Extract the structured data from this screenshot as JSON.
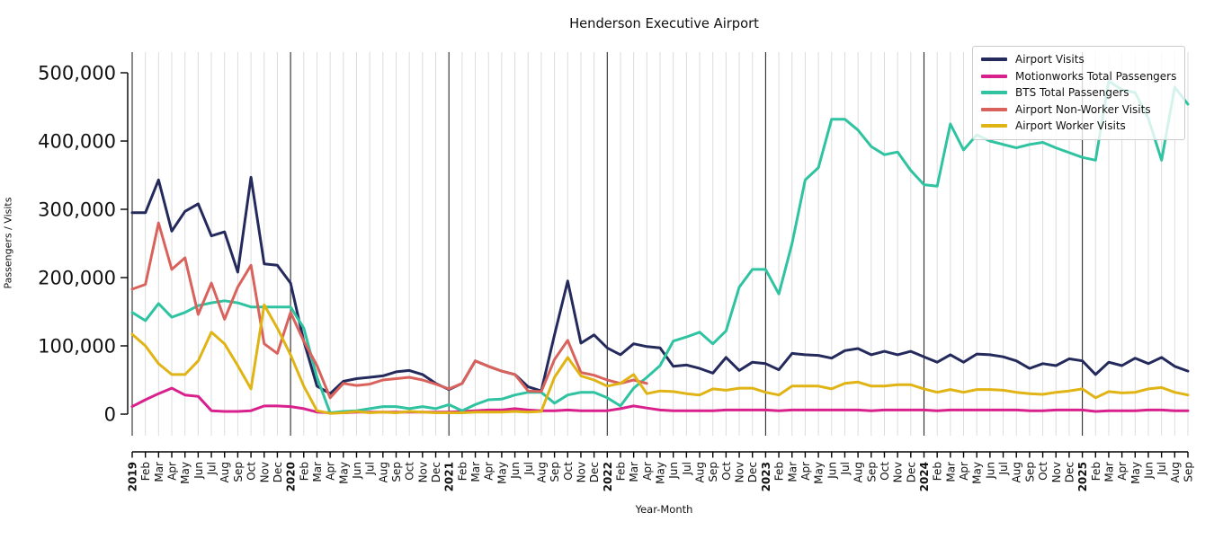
{
  "title": "Henderson Executive Airport",
  "x_axis_label": "Year-Month",
  "y_axis_label": "Passengers / Visits",
  "chart_data": {
    "type": "line",
    "title": "Henderson Executive Airport",
    "xlabel": "Year-Month",
    "ylabel": "Passengers / Visits",
    "ylim": [
      0,
      500000
    ],
    "legend_position": "upper right",
    "grid": "vertical gridline at every month; darker vertical line at every January",
    "y_tick_values": [
      0,
      100000,
      200000,
      300000,
      400000,
      500000
    ],
    "y_tick_labels": [
      "0",
      "100,000",
      "200,000",
      "300,000",
      "400,000",
      "500,000"
    ],
    "month_abbrevs": [
      "Jan",
      "Feb",
      "Mar",
      "Apr",
      "May",
      "Jun",
      "Jul",
      "Aug",
      "Sep",
      "Oct",
      "Nov",
      "Dec"
    ],
    "x": [
      "2019-01",
      "2019-02",
      "2019-03",
      "2019-04",
      "2019-05",
      "2019-06",
      "2019-07",
      "2019-08",
      "2019-09",
      "2019-10",
      "2019-11",
      "2019-12",
      "2020-01",
      "2020-02",
      "2020-03",
      "2020-04",
      "2020-05",
      "2020-06",
      "2020-07",
      "2020-08",
      "2020-09",
      "2020-10",
      "2020-11",
      "2020-12",
      "2021-01",
      "2021-02",
      "2021-03",
      "2021-04",
      "2021-05",
      "2021-06",
      "2021-07",
      "2021-08",
      "2021-09",
      "2021-10",
      "2021-11",
      "2021-12",
      "2022-01",
      "2022-02",
      "2022-03",
      "2022-04",
      "2022-05",
      "2022-06",
      "2022-07",
      "2022-08",
      "2022-09",
      "2022-10",
      "2022-11",
      "2022-12",
      "2023-01",
      "2023-02",
      "2023-03",
      "2023-04",
      "2023-05",
      "2023-06",
      "2023-07",
      "2023-08",
      "2023-09",
      "2023-10",
      "2023-11",
      "2023-12",
      "2024-01",
      "2024-02",
      "2024-03",
      "2024-04",
      "2024-05",
      "2024-06",
      "2024-07",
      "2024-08",
      "2024-09",
      "2024-10",
      "2024-11",
      "2024-12",
      "2025-01",
      "2025-02",
      "2025-03",
      "2025-04",
      "2025-05",
      "2025-06",
      "2025-07",
      "2025-08",
      "2025-09"
    ],
    "series": [
      {
        "name": "Airport Visits",
        "color": "#242a5c",
        "values": [
          295000,
          295000,
          343000,
          268000,
          297000,
          308000,
          261000,
          267000,
          208000,
          347000,
          220000,
          218000,
          192000,
          107000,
          41000,
          30000,
          48000,
          52000,
          54000,
          56000,
          62000,
          64000,
          58000,
          45000,
          36000,
          45000,
          78000,
          70000,
          63000,
          58000,
          40000,
          34000,
          116000,
          195000,
          104000,
          116000,
          97000,
          87000,
          103000,
          99000,
          97000,
          70000,
          72000,
          67000,
          60000,
          83000,
          64000,
          76000,
          74000,
          65000,
          89000,
          87000,
          86000,
          82000,
          93000,
          96000,
          87000,
          92000,
          87000,
          92000,
          84000,
          76000,
          87000,
          76000,
          88000,
          87000,
          84000,
          78000,
          67000,
          74000,
          71000,
          81000,
          78000,
          58000,
          76000,
          71000,
          82000,
          74000,
          83000,
          70000,
          63000
        ]
      },
      {
        "name": "Motionworks Total Passengers",
        "color": "#d9218e",
        "values": [
          11000,
          21000,
          30000,
          38000,
          28000,
          26000,
          5000,
          4000,
          4000,
          5000,
          12000,
          12000,
          11000,
          8000,
          3000,
          2000,
          2000,
          3000,
          3000,
          3000,
          3000,
          3000,
          3000,
          3000,
          3000,
          4000,
          5000,
          6000,
          6000,
          8000,
          6000,
          5000,
          5000,
          6000,
          5000,
          5000,
          5000,
          8000,
          12000,
          9000,
          6000,
          5000,
          5000,
          5000,
          5000,
          6000,
          6000,
          6000,
          6000,
          5000,
          6000,
          6000,
          6000,
          6000,
          6000,
          6000,
          5000,
          6000,
          6000,
          6000,
          6000,
          5000,
          6000,
          6000,
          6000,
          6000,
          6000,
          6000,
          5000,
          5000,
          6000,
          6000,
          6000,
          4000,
          5000,
          5000,
          5000,
          6000,
          6000,
          5000,
          5000
        ]
      },
      {
        "name": "BTS Total Passengers",
        "color": "#2fc3a1",
        "values": [
          149000,
          137000,
          162000,
          142000,
          149000,
          159000,
          163000,
          166000,
          163000,
          157000,
          157000,
          157000,
          157000,
          126000,
          54000,
          2000,
          4000,
          5000,
          8000,
          11000,
          11000,
          8000,
          11000,
          8000,
          14000,
          5000,
          14000,
          21000,
          22000,
          28000,
          32000,
          32000,
          16000,
          28000,
          32000,
          32000,
          24000,
          12000,
          38000,
          54000,
          71000,
          107000,
          113000,
          120000,
          103000,
          122000,
          186000,
          212000,
          212000,
          176000,
          250000,
          343000,
          361000,
          432000,
          432000,
          416000,
          392000,
          380000,
          384000,
          357000,
          336000,
          334000,
          425000,
          387000,
          409000,
          400000,
          395000,
          390000,
          395000,
          398000,
          390000,
          383000,
          376000,
          372000,
          488000,
          475000,
          471000,
          433000,
          372000,
          479000,
          454000
        ]
      },
      {
        "name": "Airport Non-Worker Visits",
        "color": "#d9635c",
        "values": [
          183000,
          190000,
          280000,
          212000,
          229000,
          146000,
          192000,
          139000,
          186000,
          218000,
          103000,
          89000,
          149000,
          107000,
          71000,
          24000,
          45000,
          42000,
          44000,
          50000,
          52000,
          54000,
          50000,
          44000,
          37000,
          45000,
          78000,
          70000,
          63000,
          58000,
          34000,
          33000,
          80000,
          108000,
          61000,
          57000,
          50000,
          45000,
          50000,
          45000,
          null,
          null,
          null,
          null,
          null,
          null,
          null,
          null,
          null,
          null,
          null,
          null,
          null,
          null,
          null,
          null,
          null,
          null,
          null,
          null,
          null,
          null,
          null,
          null,
          null,
          null,
          null,
          null,
          null,
          null,
          null,
          null,
          null,
          null,
          null,
          null,
          null,
          null,
          null,
          null,
          null
        ]
      },
      {
        "name": "Airport Worker Visits",
        "color": "#e0b414",
        "values": [
          117000,
          100000,
          74000,
          58000,
          58000,
          78000,
          120000,
          103000,
          71000,
          37000,
          160000,
          126000,
          87000,
          41000,
          5000,
          1000,
          2000,
          4000,
          2000,
          3000,
          2000,
          4000,
          3000,
          2000,
          2000,
          2000,
          3000,
          3000,
          3000,
          4000,
          3000,
          4000,
          54000,
          83000,
          56000,
          50000,
          41000,
          45000,
          58000,
          30000,
          34000,
          33000,
          30000,
          28000,
          37000,
          35000,
          38000,
          38000,
          32000,
          28000,
          41000,
          41000,
          41000,
          37000,
          45000,
          47000,
          41000,
          41000,
          43000,
          43000,
          37000,
          32000,
          36000,
          32000,
          36000,
          36000,
          35000,
          32000,
          30000,
          29000,
          32000,
          34000,
          37000,
          24000,
          33000,
          31000,
          32000,
          37000,
          39000,
          32000,
          28000
        ]
      }
    ]
  }
}
